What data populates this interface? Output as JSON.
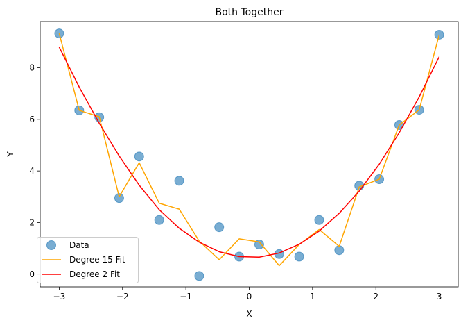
{
  "chart_data": {
    "type": "scatter",
    "title": "Both Together",
    "xlabel": "X",
    "ylabel": "Y",
    "xlim": [
      -3.3,
      3.3
    ],
    "ylim": [
      -0.49,
      9.79
    ],
    "xticks": [
      -3,
      -2,
      -1,
      0,
      1,
      2,
      3
    ],
    "xtick_labels": [
      "−3",
      "−2",
      "−1",
      "0",
      "1",
      "2",
      "3"
    ],
    "yticks": [
      0,
      2,
      4,
      6,
      8
    ],
    "ytick_labels": [
      "0",
      "2",
      "4",
      "6",
      "8"
    ],
    "grid": false,
    "legend_position": "lower-left",
    "x": [
      -3.0,
      -2.684,
      -2.368,
      -2.053,
      -1.737,
      -1.421,
      -1.105,
      -0.789,
      -0.474,
      -0.158,
      0.158,
      0.474,
      0.789,
      1.105,
      1.421,
      1.737,
      2.053,
      2.368,
      2.684,
      3.0
    ],
    "series": [
      {
        "name": "Data",
        "kind": "scatter",
        "color": "#1f77b4",
        "opacity": 0.6,
        "values": [
          9.33,
          6.35,
          6.08,
          2.95,
          4.56,
          2.1,
          3.62,
          -0.07,
          1.82,
          0.68,
          1.15,
          0.78,
          0.68,
          2.1,
          0.93,
          3.43,
          3.68,
          5.78,
          6.37,
          9.28
        ]
      },
      {
        "name": "Degree 15 Fit",
        "kind": "line",
        "color": "#ffa500",
        "values": [
          9.33,
          6.35,
          6.1,
          3.0,
          4.32,
          2.75,
          2.52,
          1.28,
          0.56,
          1.37,
          1.25,
          0.33,
          1.15,
          1.73,
          1.08,
          3.38,
          3.68,
          5.78,
          6.37,
          9.28
        ]
      },
      {
        "name": "Degree 2 Fit",
        "kind": "line",
        "color": "#ff0000",
        "values": [
          8.8,
          7.25,
          5.85,
          4.58,
          3.45,
          2.5,
          1.78,
          1.24,
          0.87,
          0.68,
          0.66,
          0.82,
          1.16,
          1.67,
          2.36,
          3.22,
          4.26,
          5.48,
          6.87,
          8.43
        ]
      }
    ]
  }
}
